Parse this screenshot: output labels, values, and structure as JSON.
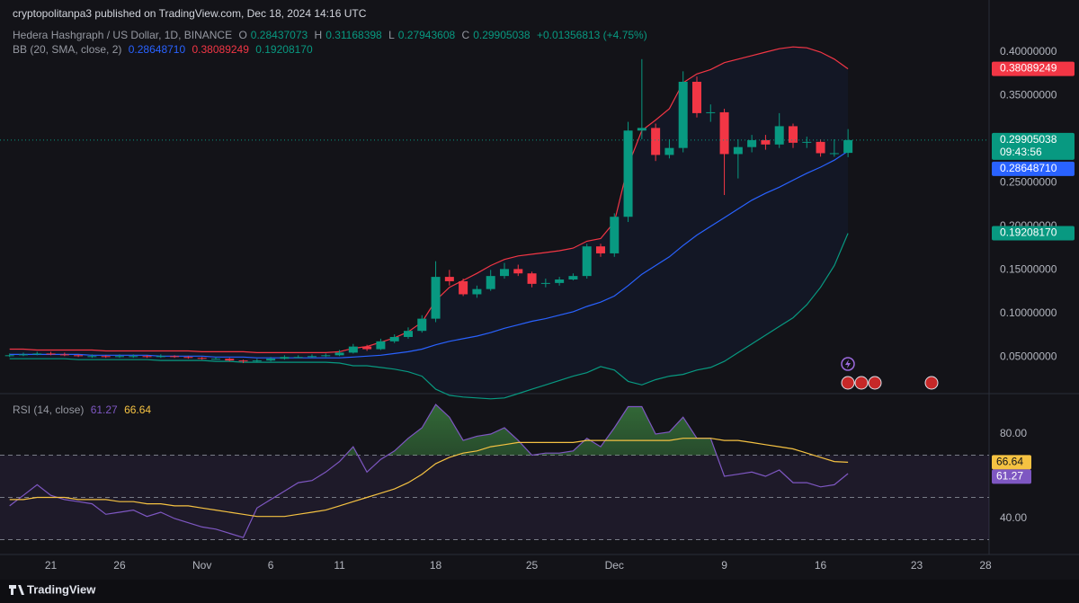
{
  "header": {
    "published": "cryptopolitanpa3 published on TradingView.com, Dec 18, 2024 14:16 UTC"
  },
  "footer": "TradingView",
  "chart_data": [
    {
      "type": "candlestick",
      "title": "Hedera Hashgraph / US Dollar, 1D, BINANCE",
      "ohlc_prefix": [
        "O",
        "H",
        "L",
        "C"
      ],
      "change": "+0.01356813 (+4.75%)",
      "countdown": "09:43:56",
      "up_color": "#089981",
      "down_color": "#f23645",
      "x": [
        "2024-10-18",
        "2024-10-19",
        "2024-10-20",
        "2024-10-21",
        "2024-10-22",
        "2024-10-23",
        "2024-10-24",
        "2024-10-25",
        "2024-10-26",
        "2024-10-27",
        "2024-10-28",
        "2024-10-29",
        "2024-10-30",
        "2024-10-31",
        "2024-11-01",
        "2024-11-02",
        "2024-11-03",
        "2024-11-04",
        "2024-11-05",
        "2024-11-06",
        "2024-11-07",
        "2024-11-08",
        "2024-11-09",
        "2024-11-10",
        "2024-11-11",
        "2024-11-12",
        "2024-11-13",
        "2024-11-14",
        "2024-11-15",
        "2024-11-16",
        "2024-11-17",
        "2024-11-18",
        "2024-11-19",
        "2024-11-20",
        "2024-11-21",
        "2024-11-22",
        "2024-11-23",
        "2024-11-24",
        "2024-11-25",
        "2024-11-26",
        "2024-11-27",
        "2024-11-28",
        "2024-11-29",
        "2024-11-30",
        "2024-12-01",
        "2024-12-02",
        "2024-12-03",
        "2024-12-04",
        "2024-12-05",
        "2024-12-06",
        "2024-12-07",
        "2024-12-08",
        "2024-12-09",
        "2024-12-10",
        "2024-12-11",
        "2024-12-12",
        "2024-12-13",
        "2024-12-14",
        "2024-12-15",
        "2024-12-16",
        "2024-12-17",
        "2024-12-18"
      ],
      "open": [
        0.051,
        0.052,
        0.053,
        0.054,
        0.053,
        0.052,
        0.051,
        0.051,
        0.05,
        0.051,
        0.051,
        0.05,
        0.051,
        0.05,
        0.049,
        0.048,
        0.048,
        0.046,
        0.045,
        0.046,
        0.048,
        0.05,
        0.05,
        0.051,
        0.052,
        0.055,
        0.062,
        0.059,
        0.068,
        0.073,
        0.08,
        0.094,
        0.142,
        0.137,
        0.122,
        0.128,
        0.143,
        0.151,
        0.146,
        0.134,
        0.135,
        0.139,
        0.143,
        0.177,
        0.169,
        0.211,
        0.31,
        0.313,
        0.282,
        0.29,
        0.366,
        0.33,
        0.331,
        0.283,
        0.291,
        0.299,
        0.294,
        0.315,
        0.296,
        0.297,
        0.284,
        0.28437073
      ],
      "high": [
        0.054,
        0.055,
        0.056,
        0.056,
        0.055,
        0.053,
        0.053,
        0.052,
        0.053,
        0.053,
        0.052,
        0.053,
        0.052,
        0.051,
        0.05,
        0.05,
        0.049,
        0.047,
        0.048,
        0.05,
        0.052,
        0.052,
        0.053,
        0.054,
        0.058,
        0.065,
        0.064,
        0.071,
        0.076,
        0.084,
        0.098,
        0.16,
        0.15,
        0.14,
        0.132,
        0.15,
        0.158,
        0.156,
        0.148,
        0.14,
        0.142,
        0.146,
        0.18,
        0.18,
        0.215,
        0.32,
        0.392,
        0.318,
        0.3,
        0.378,
        0.372,
        0.34,
        0.335,
        0.3,
        0.305,
        0.305,
        0.33,
        0.318,
        0.303,
        0.3,
        0.3,
        0.31168398
      ],
      "low": [
        0.05,
        0.051,
        0.052,
        0.052,
        0.051,
        0.05,
        0.049,
        0.049,
        0.049,
        0.049,
        0.049,
        0.049,
        0.049,
        0.048,
        0.047,
        0.047,
        0.045,
        0.043,
        0.044,
        0.045,
        0.047,
        0.049,
        0.049,
        0.05,
        0.051,
        0.054,
        0.057,
        0.058,
        0.066,
        0.071,
        0.078,
        0.09,
        0.132,
        0.12,
        0.118,
        0.126,
        0.14,
        0.143,
        0.13,
        0.13,
        0.132,
        0.138,
        0.14,
        0.165,
        0.165,
        0.205,
        0.3,
        0.275,
        0.278,
        0.285,
        0.325,
        0.32,
        0.236,
        0.255,
        0.285,
        0.288,
        0.29,
        0.29,
        0.29,
        0.28,
        0.28,
        0.27943608
      ],
      "close": [
        0.052,
        0.053,
        0.054,
        0.053,
        0.052,
        0.051,
        0.051,
        0.05,
        0.051,
        0.051,
        0.05,
        0.051,
        0.05,
        0.049,
        0.048,
        0.048,
        0.046,
        0.045,
        0.046,
        0.048,
        0.05,
        0.05,
        0.051,
        0.052,
        0.055,
        0.062,
        0.059,
        0.068,
        0.073,
        0.08,
        0.094,
        0.142,
        0.137,
        0.122,
        0.128,
        0.143,
        0.151,
        0.146,
        0.134,
        0.135,
        0.139,
        0.143,
        0.177,
        0.169,
        0.211,
        0.31,
        0.313,
        0.282,
        0.29,
        0.366,
        0.33,
        0.331,
        0.283,
        0.291,
        0.299,
        0.294,
        0.315,
        0.296,
        0.297,
        0.284,
        0.284,
        0.29905038
      ],
      "bb": {
        "label": "BB (20, SMA, close, 2)",
        "basis": {
          "color": "#2962ff",
          "last_label": "0.28648710",
          "values": [
            0.053,
            0.053,
            0.053,
            0.053,
            0.053,
            0.053,
            0.052,
            0.052,
            0.052,
            0.052,
            0.052,
            0.051,
            0.051,
            0.051,
            0.051,
            0.05,
            0.05,
            0.05,
            0.049,
            0.049,
            0.049,
            0.049,
            0.049,
            0.049,
            0.049,
            0.05,
            0.051,
            0.052,
            0.054,
            0.056,
            0.059,
            0.064,
            0.068,
            0.071,
            0.074,
            0.078,
            0.083,
            0.087,
            0.091,
            0.094,
            0.098,
            0.102,
            0.108,
            0.113,
            0.12,
            0.132,
            0.145,
            0.155,
            0.165,
            0.178,
            0.19,
            0.2,
            0.21,
            0.22,
            0.23,
            0.238,
            0.245,
            0.253,
            0.261,
            0.268,
            0.276,
            0.2864871
          ]
        },
        "upper": {
          "color": "#f23645",
          "last_label": "0.38089249",
          "values": [
            0.059,
            0.059,
            0.058,
            0.058,
            0.058,
            0.058,
            0.058,
            0.057,
            0.057,
            0.057,
            0.057,
            0.057,
            0.057,
            0.057,
            0.056,
            0.056,
            0.056,
            0.056,
            0.055,
            0.055,
            0.055,
            0.055,
            0.055,
            0.055,
            0.056,
            0.06,
            0.062,
            0.067,
            0.072,
            0.079,
            0.09,
            0.115,
            0.13,
            0.138,
            0.146,
            0.155,
            0.162,
            0.166,
            0.168,
            0.17,
            0.172,
            0.175,
            0.183,
            0.186,
            0.205,
            0.27,
            0.31,
            0.322,
            0.335,
            0.365,
            0.375,
            0.38,
            0.388,
            0.392,
            0.396,
            0.4,
            0.404,
            0.406,
            0.405,
            0.4,
            0.392,
            0.38089249
          ]
        },
        "lower": {
          "color": "#089981",
          "last_label": "0.19208170",
          "values": [
            0.048,
            0.048,
            0.048,
            0.048,
            0.048,
            0.047,
            0.047,
            0.047,
            0.047,
            0.047,
            0.047,
            0.046,
            0.046,
            0.046,
            0.046,
            0.045,
            0.045,
            0.044,
            0.044,
            0.044,
            0.044,
            0.044,
            0.044,
            0.044,
            0.043,
            0.04,
            0.04,
            0.038,
            0.036,
            0.033,
            0.028,
            0.013,
            0.006,
            0.004,
            0.003,
            0.002,
            0.003,
            0.008,
            0.013,
            0.018,
            0.023,
            0.028,
            0.032,
            0.039,
            0.035,
            0.022,
            0.018,
            0.024,
            0.028,
            0.03,
            0.035,
            0.038,
            0.045,
            0.055,
            0.065,
            0.075,
            0.085,
            0.095,
            0.11,
            0.13,
            0.155,
            0.1920817
          ]
        }
      },
      "xlim": [
        "2024-10-17",
        "2024-12-28"
      ],
      "xticks": [
        {
          "value": "2024-10-21",
          "label": "21"
        },
        {
          "value": "2024-10-26",
          "label": "26"
        },
        {
          "value": "2024-11-01",
          "label": "Nov"
        },
        {
          "value": "2024-11-06",
          "label": "6"
        },
        {
          "value": "2024-11-11",
          "label": "11"
        },
        {
          "value": "2024-11-18",
          "label": "18"
        },
        {
          "value": "2024-11-25",
          "label": "25"
        },
        {
          "value": "2024-12-01",
          "label": "Dec"
        },
        {
          "value": "2024-12-09",
          "label": "9"
        },
        {
          "value": "2024-12-16",
          "label": "16"
        },
        {
          "value": "2024-12-23",
          "label": "23"
        },
        {
          "value": "2024-12-28",
          "label": "28"
        }
      ],
      "ylim": [
        0.009,
        0.431
      ],
      "yticks": [
        {
          "value": 0.05,
          "label": "0.05000000"
        },
        {
          "value": 0.1,
          "label": "0.10000000"
        },
        {
          "value": 0.15,
          "label": "0.15000000"
        },
        {
          "value": 0.2,
          "label": "0.20000000"
        },
        {
          "value": 0.25,
          "label": "0.25000000"
        },
        {
          "value": 0.3,
          "label": "0.30000000"
        },
        {
          "value": 0.35,
          "label": "0.35000000"
        },
        {
          "value": 0.4,
          "label": "0.40000000"
        }
      ]
    },
    {
      "type": "line",
      "title": "RSI (14, close)",
      "series": [
        {
          "color": "#7e57c2",
          "values": [
            46,
            51,
            56,
            51,
            49,
            48,
            47,
            42,
            43,
            44,
            41,
            43,
            40,
            38,
            36,
            35,
            33,
            31,
            45,
            49,
            53,
            57,
            58,
            62,
            67,
            74,
            62,
            68,
            72,
            78,
            83,
            94,
            88,
            77,
            79,
            80,
            83,
            77,
            70,
            71,
            71,
            72,
            78,
            74,
            83,
            93,
            93,
            80,
            81,
            88,
            78,
            78,
            60,
            61,
            62,
            60,
            63,
            57,
            57,
            55,
            56,
            61.27
          ]
        },
        {
          "color": "#f5c242",
          "values": [
            49,
            49,
            50,
            50,
            50,
            49,
            49,
            49,
            48,
            48,
            47,
            47,
            46,
            46,
            45,
            44,
            43,
            42,
            41,
            41,
            41,
            42,
            43,
            44,
            46,
            48,
            50,
            52,
            54,
            57,
            61,
            66,
            69,
            71,
            72,
            74,
            75,
            76,
            76,
            76,
            76,
            76,
            77,
            77,
            77,
            77,
            77,
            77,
            77,
            78,
            78,
            78,
            77,
            77,
            76,
            75,
            74,
            73,
            71,
            69,
            67,
            66.64
          ]
        }
      ],
      "levels": [
        70,
        50,
        30
      ],
      "ylim": [
        23,
        98.3
      ],
      "yticks": [
        {
          "value": 40,
          "label": "40.00"
        },
        {
          "value": 80,
          "label": "80.00"
        }
      ]
    }
  ]
}
